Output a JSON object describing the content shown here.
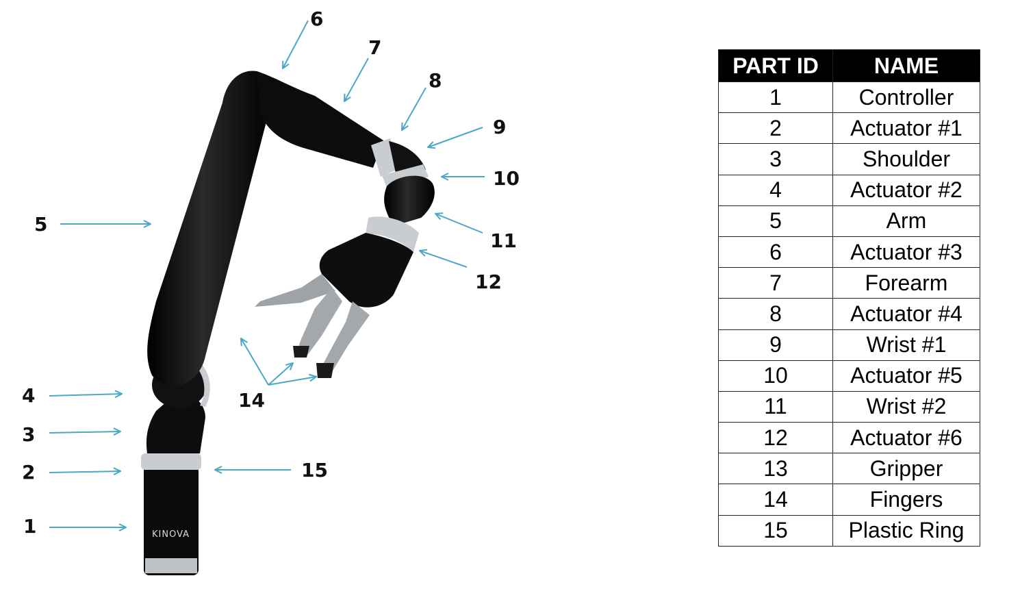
{
  "diagram": {
    "brand_text": "KINOVA",
    "arrow_color": "#4aa8c4",
    "callouts": [
      "1",
      "2",
      "3",
      "4",
      "5",
      "6",
      "7",
      "8",
      "9",
      "10",
      "11",
      "12",
      "14",
      "15"
    ]
  },
  "table": {
    "headers": {
      "id": "PART ID",
      "name": "NAME"
    },
    "rows": [
      {
        "id": "1",
        "name": "Controller"
      },
      {
        "id": "2",
        "name": "Actuator #1"
      },
      {
        "id": "3",
        "name": "Shoulder"
      },
      {
        "id": "4",
        "name": "Actuator #2"
      },
      {
        "id": "5",
        "name": "Arm"
      },
      {
        "id": "6",
        "name": "Actuator #3"
      },
      {
        "id": "7",
        "name": "Forearm"
      },
      {
        "id": "8",
        "name": "Actuator #4"
      },
      {
        "id": "9",
        "name": "Wrist #1"
      },
      {
        "id": "10",
        "name": "Actuator #5"
      },
      {
        "id": "11",
        "name": "Wrist #2"
      },
      {
        "id": "12",
        "name": "Actuator #6"
      },
      {
        "id": "13",
        "name": "Gripper"
      },
      {
        "id": "14",
        "name": "Fingers"
      },
      {
        "id": "15",
        "name": "Plastic Ring"
      }
    ]
  }
}
